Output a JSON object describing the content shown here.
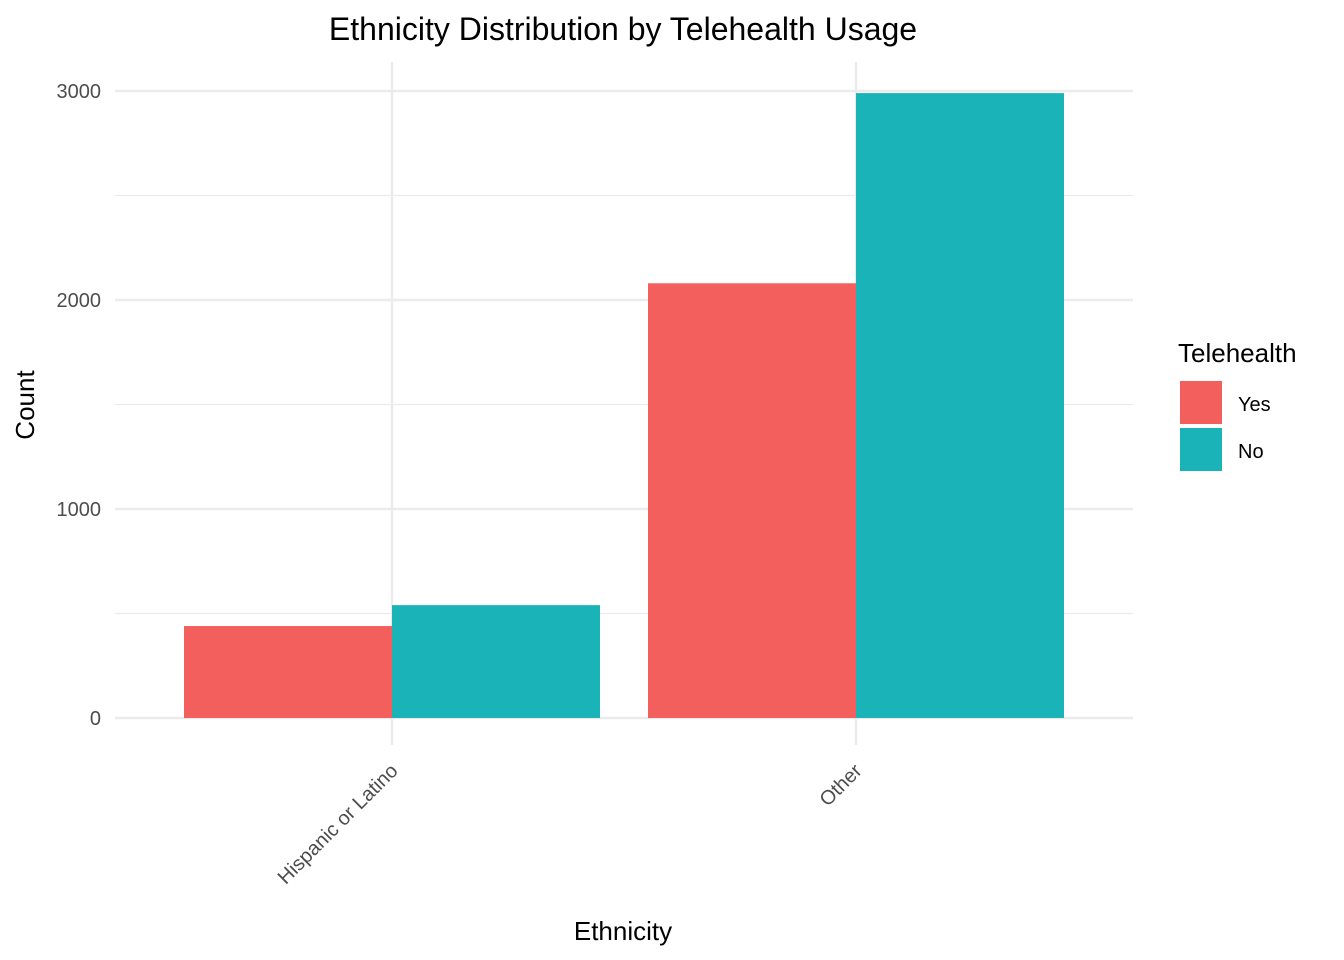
{
  "chart_data": {
    "type": "bar",
    "title": "Ethnicity Distribution by Telehealth Usage",
    "xlabel": "Ethnicity",
    "ylabel": "Count",
    "categories": [
      "Hispanic or Latino",
      "Other"
    ],
    "series": [
      {
        "name": "Yes",
        "color": "#F25F5C",
        "values": [
          440,
          2080
        ]
      },
      {
        "name": "No",
        "color": "#1AB3B8",
        "values": [
          540,
          2990
        ]
      }
    ],
    "ylim": [
      0,
      3130
    ],
    "yticks": [
      0,
      1000,
      2000,
      3000
    ],
    "grid": true,
    "legend": {
      "title": "Telehealth",
      "position": "right"
    }
  }
}
